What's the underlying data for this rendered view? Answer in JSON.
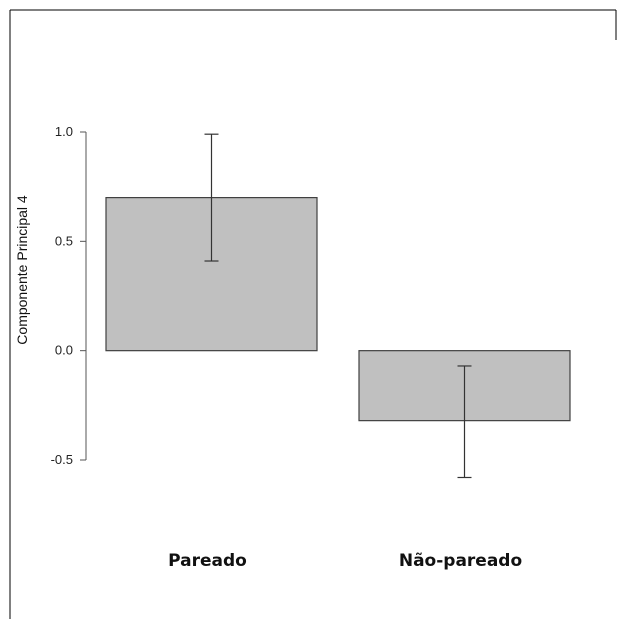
{
  "chart_data": {
    "type": "bar",
    "title": "",
    "xlabel": "",
    "ylabel": "Componente Principal 4",
    "categories": [
      "Pareado",
      "Não-pareado"
    ],
    "values": [
      0.7,
      -0.32
    ],
    "error_low": [
      0.41,
      -0.58
    ],
    "error_high": [
      0.99,
      -0.07
    ],
    "ylim": [
      -0.5,
      1.0
    ],
    "yticks": [
      -0.5,
      0.0,
      0.5,
      1.0
    ],
    "ytick_labels": [
      "-0.5",
      "0.0",
      "0.5",
      "1.0"
    ],
    "grid": false,
    "legend": "none",
    "bar_color": "#c0c0c0",
    "bar_edge_color": "#404040"
  }
}
